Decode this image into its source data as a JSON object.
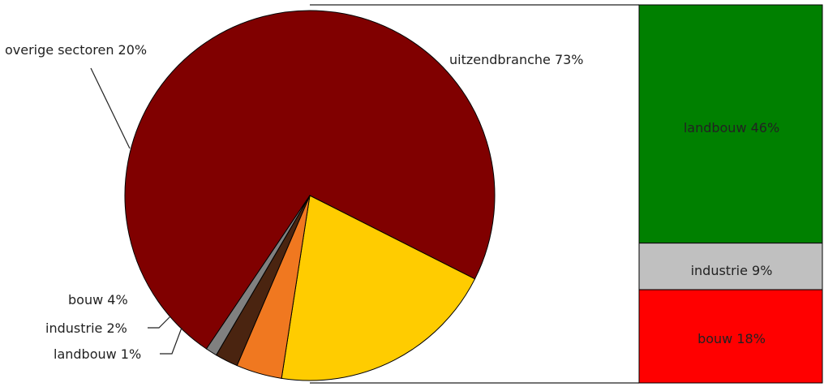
{
  "chart_data": [
    {
      "type": "pie",
      "slices": [
        {
          "label": "uitzendbranche 73%",
          "value": 73,
          "color": "#800000"
        },
        {
          "label": "overige sectoren 20%",
          "value": 20,
          "color": "#ffcc00"
        },
        {
          "label": "bouw 4%",
          "value": 4,
          "color": "#f07820"
        },
        {
          "label": "industrie 2%",
          "value": 2,
          "color": "#4a2410"
        },
        {
          "label": "landbouw 1%",
          "value": 1,
          "color": "#808080"
        }
      ]
    },
    {
      "type": "bar",
      "stacked": true,
      "segments": [
        {
          "label": "landbouw 46%",
          "value": 46,
          "color": "#008000"
        },
        {
          "label": "industrie 9%",
          "value": 9,
          "color": "#c0c0c0"
        },
        {
          "label": "bouw 18%",
          "value": 18,
          "color": "#ff0000"
        }
      ]
    }
  ]
}
